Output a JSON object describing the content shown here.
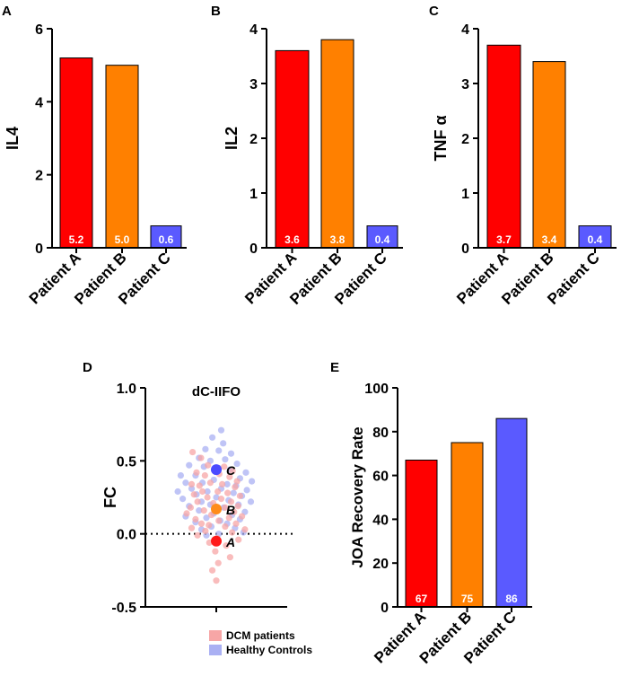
{
  "chart_data": [
    {
      "panel": "A",
      "type": "bar",
      "ylabel": "IL4",
      "categories": [
        "Patient A",
        "Patient B",
        "Patient C"
      ],
      "values": [
        5.2,
        5.0,
        0.6
      ],
      "value_labels": [
        "5.2",
        "5.0",
        "0.6"
      ],
      "ylim": [
        0,
        6
      ],
      "yticks": [
        0,
        2,
        4,
        6
      ],
      "colors": [
        "#ff0000",
        "#ff8000",
        "#5a5aff"
      ]
    },
    {
      "panel": "B",
      "type": "bar",
      "ylabel": "IL2",
      "categories": [
        "Patient A",
        "Patient B",
        "Patient C"
      ],
      "values": [
        3.6,
        3.8,
        0.4
      ],
      "value_labels": [
        "3.6",
        "3.8",
        "0.4"
      ],
      "ylim": [
        0,
        4
      ],
      "yticks": [
        0,
        1,
        2,
        3,
        4
      ],
      "colors": [
        "#ff0000",
        "#ff8000",
        "#5a5aff"
      ]
    },
    {
      "panel": "C",
      "type": "bar",
      "ylabel": "TNF α",
      "categories": [
        "Patient A",
        "Patient B",
        "Patient C"
      ],
      "values": [
        3.7,
        3.4,
        0.4
      ],
      "value_labels": [
        "3.7",
        "3.4",
        "0.4"
      ],
      "ylim": [
        0,
        4
      ],
      "yticks": [
        0,
        1,
        2,
        3,
        4
      ],
      "colors": [
        "#ff0000",
        "#ff8000",
        "#5a5aff"
      ]
    },
    {
      "panel": "D",
      "type": "scatter",
      "title": "dC-IIFO",
      "ylabel": "FC",
      "ylim": [
        -0.5,
        1.0
      ],
      "yticks": [
        -0.5,
        0.0,
        0.5,
        1.0
      ],
      "ytick_labels": [
        "-0.5",
        "0.0",
        "0.5",
        "1.0"
      ],
      "reference_line_y": 0,
      "legend": [
        {
          "label": "DCM patients",
          "color": "#f7a6a6"
        },
        {
          "label": "Healthy Controls",
          "color": "#aab0f3"
        }
      ],
      "highlighted": [
        {
          "label": "A",
          "y": -0.05,
          "color": "#ff1a1a"
        },
        {
          "label": "B",
          "y": 0.17,
          "color": "#ff8c1a"
        },
        {
          "label": "C",
          "y": 0.44,
          "color": "#4a4aff"
        }
      ],
      "dcm_patients": [
        [
          -0.48,
          0.56
        ],
        [
          -0.31,
          0.52
        ],
        [
          -0.17,
          0.47
        ],
        [
          -0.02,
          0.45
        ],
        [
          0.16,
          0.46
        ],
        [
          0.33,
          0.43
        ],
        [
          -0.4,
          0.42
        ],
        [
          -0.23,
          0.4
        ],
        [
          0.06,
          0.41
        ],
        [
          0.27,
          0.39
        ],
        [
          0.42,
          0.36
        ],
        [
          -0.5,
          0.34
        ],
        [
          -0.34,
          0.33
        ],
        [
          -0.12,
          0.35
        ],
        [
          0.12,
          0.34
        ],
        [
          0.38,
          0.32
        ],
        [
          -0.28,
          0.29
        ],
        [
          0.03,
          0.29
        ],
        [
          0.23,
          0.28
        ],
        [
          -0.45,
          0.27
        ],
        [
          0.48,
          0.26
        ],
        [
          -0.18,
          0.25
        ],
        [
          0.1,
          0.24
        ],
        [
          -0.38,
          0.22
        ],
        [
          0.3,
          0.22
        ],
        [
          -0.06,
          0.21
        ],
        [
          0.44,
          0.19
        ],
        [
          -0.52,
          0.18
        ],
        [
          0.18,
          0.18
        ],
        [
          -0.25,
          0.16
        ],
        [
          0.36,
          0.15
        ],
        [
          -0.6,
          0.14
        ],
        [
          -0.1,
          0.13
        ],
        [
          0.52,
          0.12
        ],
        [
          -0.42,
          0.1
        ],
        [
          0.26,
          0.11
        ],
        [
          0.05,
          0.09
        ],
        [
          -0.3,
          0.07
        ],
        [
          0.4,
          0.07
        ],
        [
          -0.15,
          0.06
        ],
        [
          0.18,
          0.05
        ],
        [
          -0.5,
          0.04
        ],
        [
          0.58,
          0.03
        ],
        [
          -0.22,
          0.02
        ],
        [
          0.32,
          0.01
        ],
        [
          -0.38,
          -0.01
        ],
        [
          0.02,
          -0.03
        ],
        [
          0.45,
          -0.04
        ],
        [
          -0.14,
          -0.06
        ],
        [
          0.2,
          -0.08
        ],
        [
          -0.02,
          -0.12
        ],
        [
          0.28,
          -0.16
        ],
        [
          0.04,
          -0.2
        ],
        [
          -0.08,
          -0.25
        ],
        [
          0.0,
          -0.32
        ]
      ],
      "healthy_controls": [
        [
          0.1,
          0.71
        ],
        [
          -0.08,
          0.66
        ],
        [
          0.14,
          0.62
        ],
        [
          -0.22,
          0.58
        ],
        [
          0.05,
          0.57
        ],
        [
          0.3,
          0.55
        ],
        [
          -0.35,
          0.52
        ],
        [
          0.18,
          0.51
        ],
        [
          -0.12,
          0.5
        ],
        [
          0.42,
          0.48
        ],
        [
          -0.55,
          0.47
        ],
        [
          -0.25,
          0.46
        ],
        [
          0.05,
          0.45
        ],
        [
          0.28,
          0.44
        ],
        [
          0.6,
          0.42
        ],
        [
          -0.72,
          0.4
        ],
        [
          -0.42,
          0.4
        ],
        [
          0.48,
          0.38
        ],
        [
          -0.05,
          0.37
        ],
        [
          0.72,
          0.36
        ],
        [
          -0.62,
          0.35
        ],
        [
          -0.28,
          0.35
        ],
        [
          0.22,
          0.34
        ],
        [
          0.4,
          0.33
        ],
        [
          -0.5,
          0.31
        ],
        [
          0.1,
          0.31
        ],
        [
          0.62,
          0.3
        ],
        [
          -0.78,
          0.29
        ],
        [
          -0.18,
          0.29
        ],
        [
          0.35,
          0.28
        ],
        [
          -0.4,
          0.27
        ],
        [
          0.52,
          0.26
        ],
        [
          0.0,
          0.25
        ],
        [
          -0.68,
          0.24
        ],
        [
          0.25,
          0.23
        ],
        [
          -0.3,
          0.22
        ],
        [
          0.7,
          0.22
        ],
        [
          -0.12,
          0.2
        ],
        [
          0.45,
          0.2
        ],
        [
          -0.55,
          0.19
        ],
        [
          0.15,
          0.18
        ],
        [
          -0.35,
          0.16
        ],
        [
          0.58,
          0.15
        ],
        [
          -0.05,
          0.14
        ],
        [
          0.32,
          0.13
        ],
        [
          -0.62,
          0.12
        ],
        [
          -0.2,
          0.11
        ],
        [
          0.48,
          0.1
        ],
        [
          0.08,
          0.09
        ],
        [
          -0.42,
          0.08
        ],
        [
          0.22,
          0.07
        ],
        [
          -0.1,
          0.05
        ],
        [
          0.38,
          0.04
        ],
        [
          -0.3,
          0.03
        ],
        [
          0.55,
          0.01
        ],
        [
          0.05,
          0.0
        ],
        [
          -0.2,
          -0.01
        ]
      ]
    },
    {
      "panel": "E",
      "type": "bar",
      "ylabel": "JOA Recovery Rate",
      "categories": [
        "Patient A",
        "Patient B",
        "Patient C"
      ],
      "values": [
        67,
        75,
        86
      ],
      "value_labels": [
        "67",
        "75",
        "86"
      ],
      "ylim": [
        0,
        100
      ],
      "yticks": [
        0,
        20,
        40,
        60,
        80,
        100
      ],
      "colors": [
        "#ff0000",
        "#ff8000",
        "#5a5aff"
      ]
    }
  ]
}
